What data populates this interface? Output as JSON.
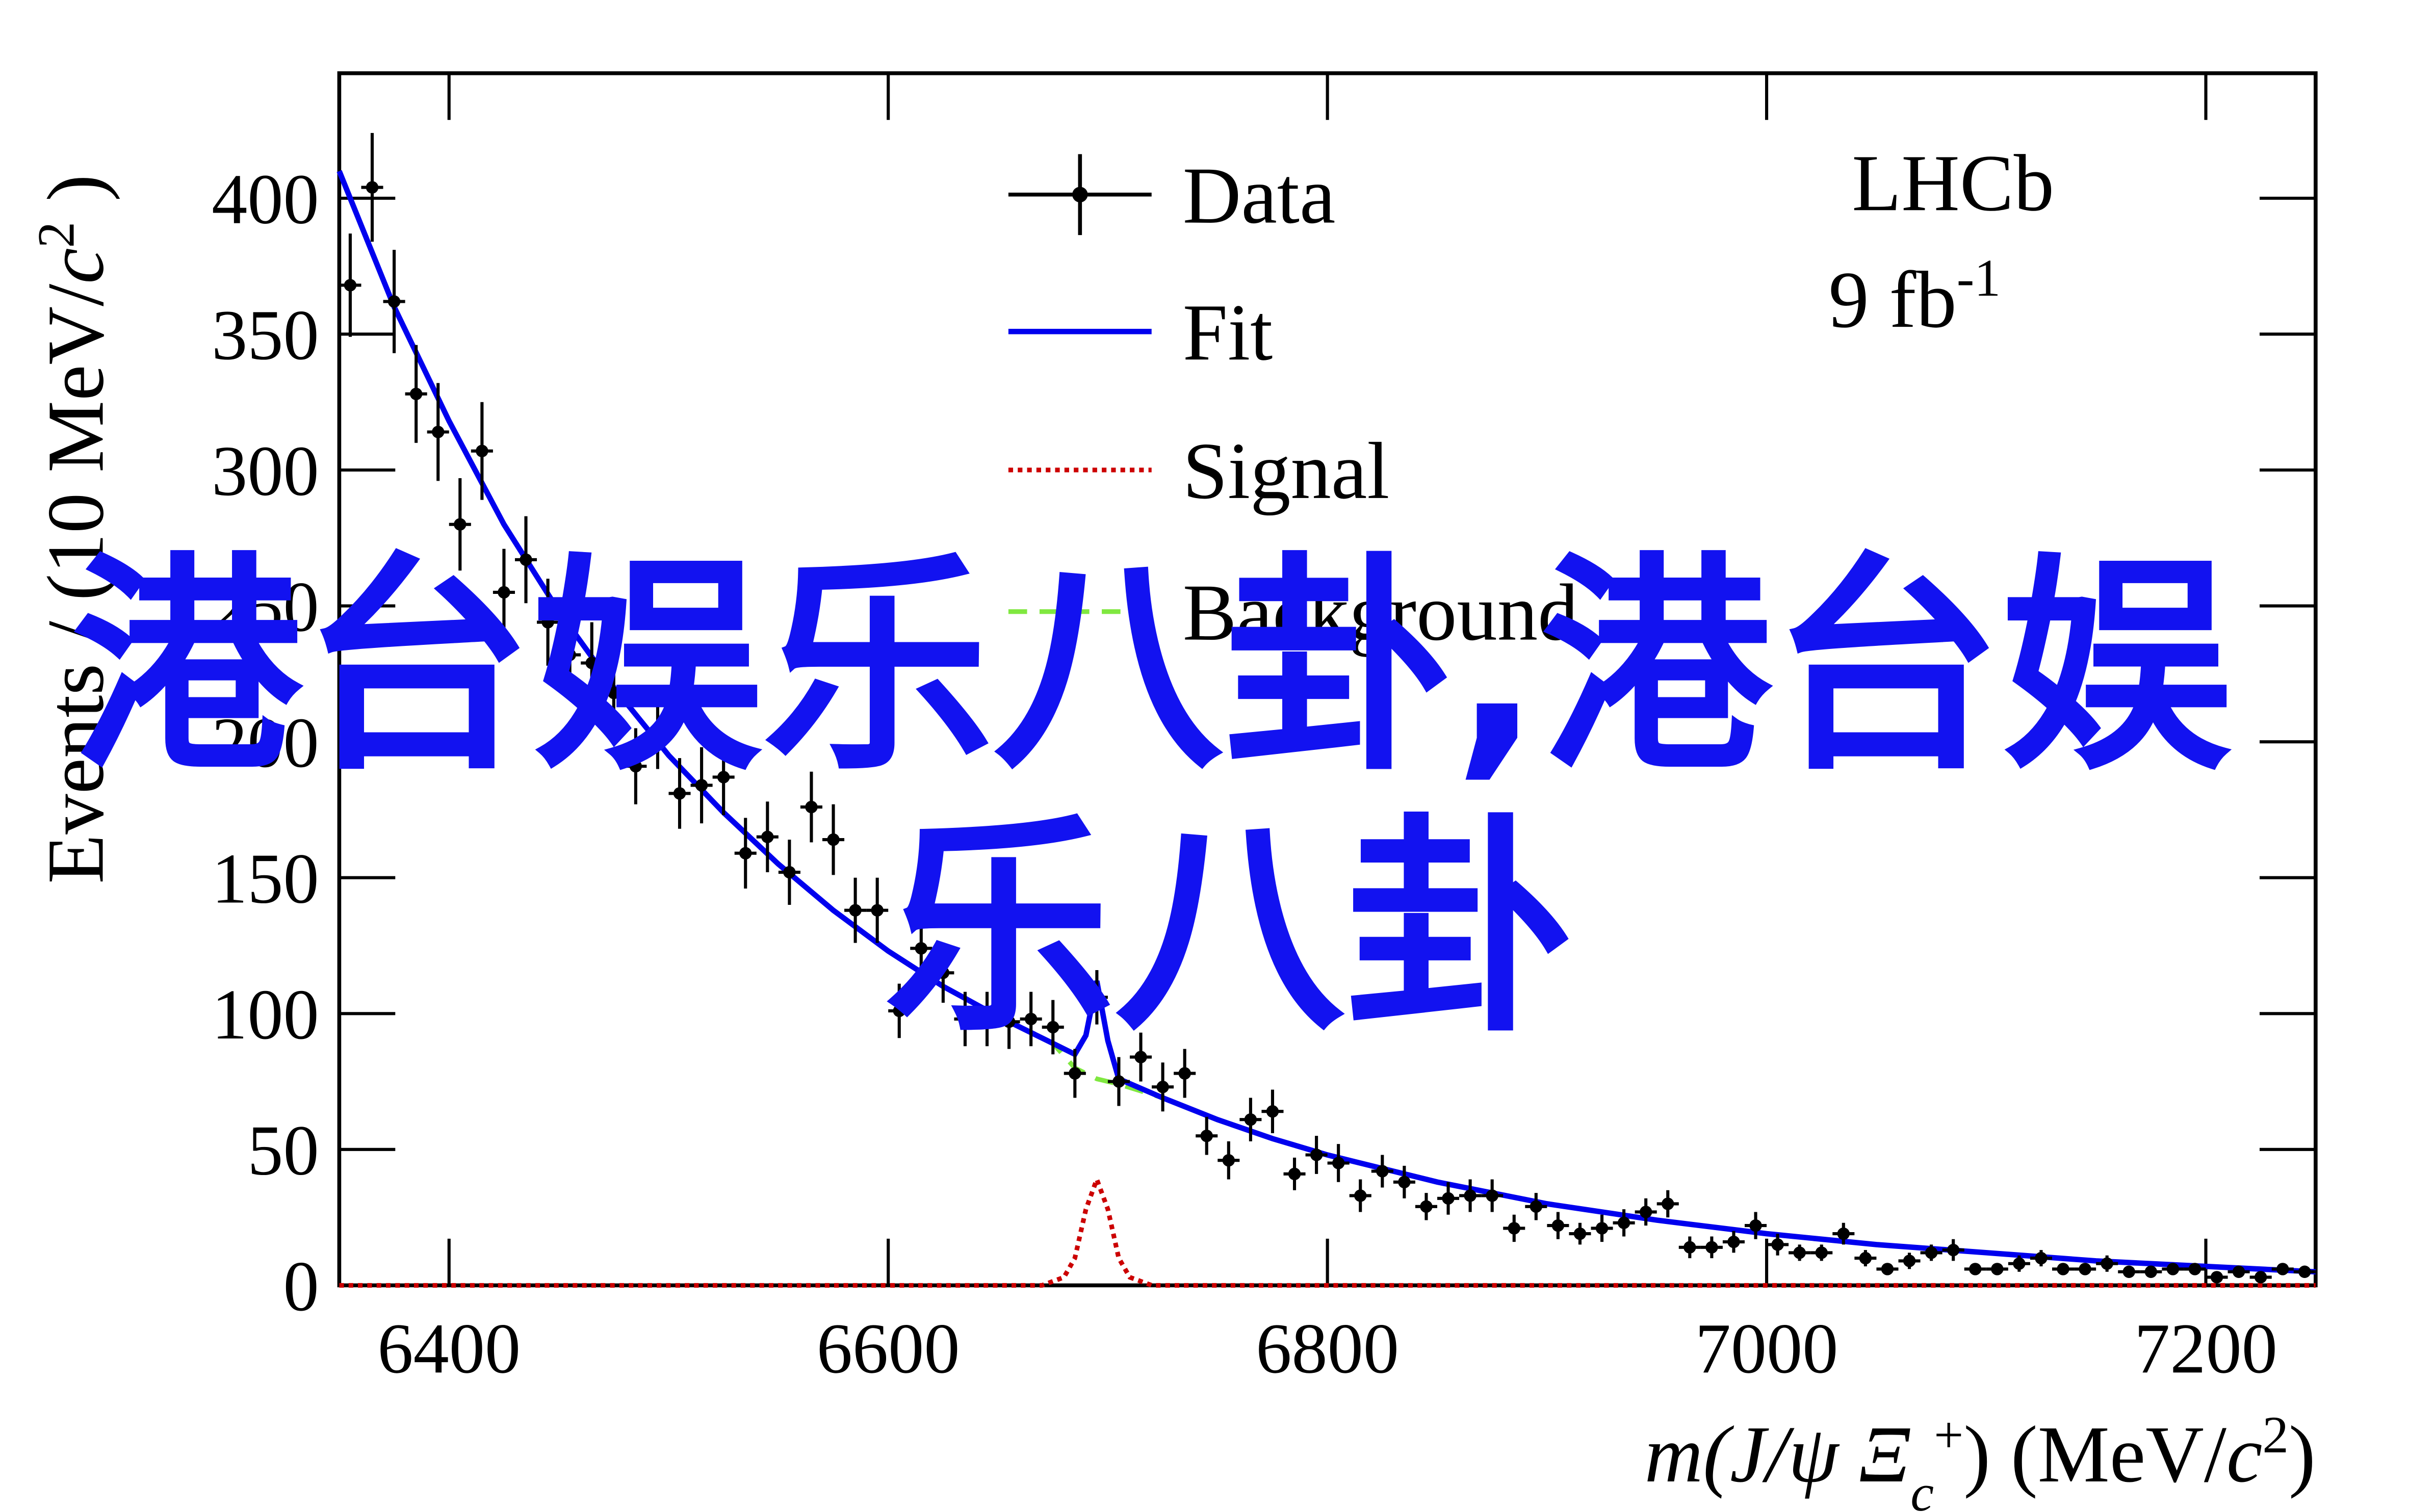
{
  "chart_data": {
    "type": "histogram-fit",
    "x_label": [
      {
        "text": "m",
        "style": "italic"
      },
      {
        "text": "(J/ψ ",
        "style": "italic"
      },
      {
        "text": "Ξ",
        "style": "italic"
      },
      {
        "text": "c",
        "style": "italicsub"
      },
      {
        "text": "+",
        "style": "sup"
      },
      {
        "text": ") (MeV/",
        "style": "normal"
      },
      {
        "text": "c",
        "style": "italic"
      },
      {
        "text": "2",
        "style": "sup"
      },
      {
        "text": ")",
        "style": "normal"
      }
    ],
    "y_label": [
      {
        "text": "Events / (10 MeV/",
        "style": "normal"
      },
      {
        "text": "c",
        "style": "italic"
      },
      {
        "text": "2",
        "style": "sup"
      },
      {
        "text": " )",
        "style": "normal"
      }
    ],
    "annotations": {
      "experiment": "LHCb",
      "luminosity": "9 fb",
      "luminosity_exp": "-1"
    },
    "watermark": {
      "lines": [
        "港台娱乐八卦,港台娱",
        "乐八卦"
      ],
      "color": "#1212f0"
    },
    "xlim": [
      6350,
      7250
    ],
    "ylim": [
      0,
      446
    ],
    "xticks": [
      6400,
      6600,
      6800,
      7000,
      7200
    ],
    "yticks": [
      0,
      50,
      100,
      150,
      200,
      250,
      300,
      350,
      400
    ],
    "data": {
      "name": "Data",
      "color": "#000000",
      "x": [
        6355,
        6365,
        6375,
        6385,
        6395,
        6405,
        6415,
        6425,
        6435,
        6445,
        6455,
        6465,
        6475,
        6485,
        6495,
        6505,
        6515,
        6525,
        6535,
        6545,
        6555,
        6565,
        6575,
        6585,
        6595,
        6605,
        6615,
        6625,
        6635,
        6645,
        6655,
        6665,
        6675,
        6685,
        6695,
        6705,
        6715,
        6725,
        6735,
        6745,
        6755,
        6765,
        6775,
        6785,
        6795,
        6805,
        6815,
        6825,
        6835,
        6845,
        6855,
        6865,
        6875,
        6885,
        6895,
        6905,
        6915,
        6925,
        6935,
        6945,
        6955,
        6965,
        6975,
        6985,
        6995,
        7005,
        7015,
        7025,
        7035,
        7045,
        7055,
        7065,
        7075,
        7085,
        7095,
        7105,
        7115,
        7125,
        7135,
        7145,
        7155,
        7165,
        7175,
        7185,
        7195,
        7205,
        7215,
        7225,
        7235,
        7245
      ],
      "values": [
        368,
        404,
        362,
        328,
        314,
        280,
        307,
        255,
        267,
        244,
        232,
        229,
        218,
        191,
        204,
        181,
        184,
        187,
        159,
        165,
        152,
        176,
        164,
        138,
        138,
        101,
        124,
        115,
        98,
        98,
        97,
        98,
        95,
        78,
        106,
        75,
        84,
        73,
        78,
        55,
        46,
        61,
        64,
        41,
        48,
        45,
        33,
        42,
        38,
        29,
        32,
        33,
        33,
        21,
        29,
        22,
        19,
        21,
        23,
        27,
        30,
        14,
        14,
        16,
        22,
        15,
        12,
        12,
        19,
        10,
        6,
        9,
        12,
        13,
        6,
        6,
        8,
        10,
        6,
        6,
        8,
        5,
        5,
        6,
        6,
        3,
        5,
        3,
        6,
        5
      ],
      "errors": [
        19,
        20,
        19,
        18,
        18,
        17,
        18,
        16,
        16,
        16,
        15,
        15,
        15,
        14,
        14,
        13,
        14,
        14,
        13,
        13,
        12,
        13,
        13,
        12,
        12,
        10,
        11,
        11,
        10,
        10,
        10,
        10,
        10,
        9,
        10,
        9,
        9,
        9,
        9,
        7,
        7,
        8,
        8,
        6,
        7,
        7,
        6,
        6,
        6,
        5,
        6,
        6,
        6,
        5,
        5,
        5,
        4,
        5,
        5,
        5,
        5,
        4,
        4,
        4,
        5,
        4,
        3,
        3,
        4,
        3,
        2,
        3,
        3,
        4,
        2,
        2,
        3,
        3,
        2,
        2,
        3,
        2,
        2,
        2,
        2,
        2,
        2,
        2,
        2,
        2
      ]
    },
    "series": [
      {
        "name": "Background",
        "color": "#80e840",
        "dash": "dashed",
        "x": [
          6350,
          6375,
          6400,
          6425,
          6450,
          6475,
          6500,
          6525,
          6550,
          6575,
          6600,
          6625,
          6650,
          6675,
          6685,
          6690,
          6695,
          6700,
          6705,
          6725,
          6750,
          6775,
          6800,
          6850,
          6900,
          6950,
          7000,
          7050,
          7100,
          7150,
          7200,
          7250
        ],
        "values": [
          410,
          360,
          318,
          280,
          248,
          220,
          195,
          174,
          155,
          138,
          123,
          110,
          99,
          89,
          80,
          78,
          76,
          75,
          74,
          69,
          61,
          54,
          48,
          38,
          30,
          24,
          19,
          15,
          12,
          9,
          7,
          5
        ]
      },
      {
        "name": "Fit",
        "color": "#0000ee",
        "dash": "solid",
        "x": [
          6350,
          6375,
          6400,
          6425,
          6450,
          6475,
          6500,
          6525,
          6550,
          6575,
          6600,
          6625,
          6650,
          6675,
          6685,
          6690,
          6695,
          6700,
          6705,
          6725,
          6750,
          6775,
          6800,
          6850,
          6900,
          6950,
          7000,
          7050,
          7100,
          7150,
          7200,
          7250
        ],
        "values": [
          410,
          360,
          318,
          280,
          248,
          220,
          195,
          174,
          155,
          138,
          123,
          110,
          99,
          89,
          85,
          92,
          112,
          90,
          76,
          69,
          61,
          54,
          48,
          38,
          30,
          24,
          19,
          15,
          12,
          9,
          7,
          5
        ]
      },
      {
        "name": "Signal",
        "color": "#cc0000",
        "dash": "dotted",
        "x": [
          6350,
          6670,
          6680,
          6685,
          6690,
          6695,
          6700,
          6705,
          6710,
          6720,
          7250
        ],
        "values": [
          0,
          0,
          3,
          10,
          28,
          39,
          28,
          10,
          3,
          0,
          0
        ]
      }
    ],
    "legend_order": [
      "Data",
      "Fit",
      "Signal",
      "Background"
    ]
  }
}
